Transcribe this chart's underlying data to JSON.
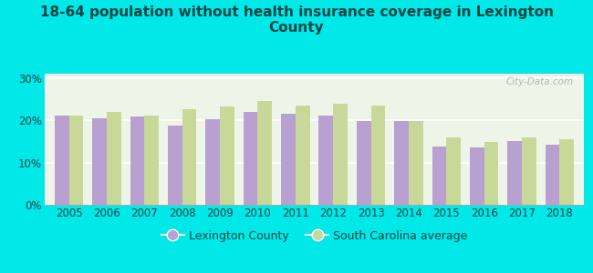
{
  "title": "18-64 population without health insurance coverage in Lexington\nCounty",
  "years": [
    2005,
    2006,
    2007,
    2008,
    2009,
    2010,
    2011,
    2012,
    2013,
    2014,
    2015,
    2016,
    2017,
    2018
  ],
  "lexington": [
    21.0,
    20.5,
    20.8,
    18.8,
    20.2,
    22.0,
    21.5,
    21.0,
    19.8,
    19.8,
    13.8,
    13.5,
    15.0,
    14.3
  ],
  "sc_average": [
    21.2,
    22.0,
    21.0,
    22.5,
    23.2,
    24.5,
    23.5,
    24.0,
    23.5,
    19.8,
    16.0,
    14.8,
    16.0,
    15.5
  ],
  "bar_color_lexington": "#b8a0d0",
  "bar_color_sc": "#c8d898",
  "background_color": "#00e8e8",
  "plot_bg_color": "#eef5e8",
  "ylabel_ticks": [
    0,
    10,
    20,
    30
  ],
  "ylabel_labels": [
    "0%",
    "10%",
    "20%",
    "30%"
  ],
  "ylim": [
    0,
    31
  ],
  "legend_lexington": "Lexington County",
  "legend_sc": "South Carolina average",
  "bar_width": 0.38,
  "title_fontsize": 11,
  "tick_fontsize": 8.5,
  "legend_fontsize": 9,
  "title_color": "#004444"
}
